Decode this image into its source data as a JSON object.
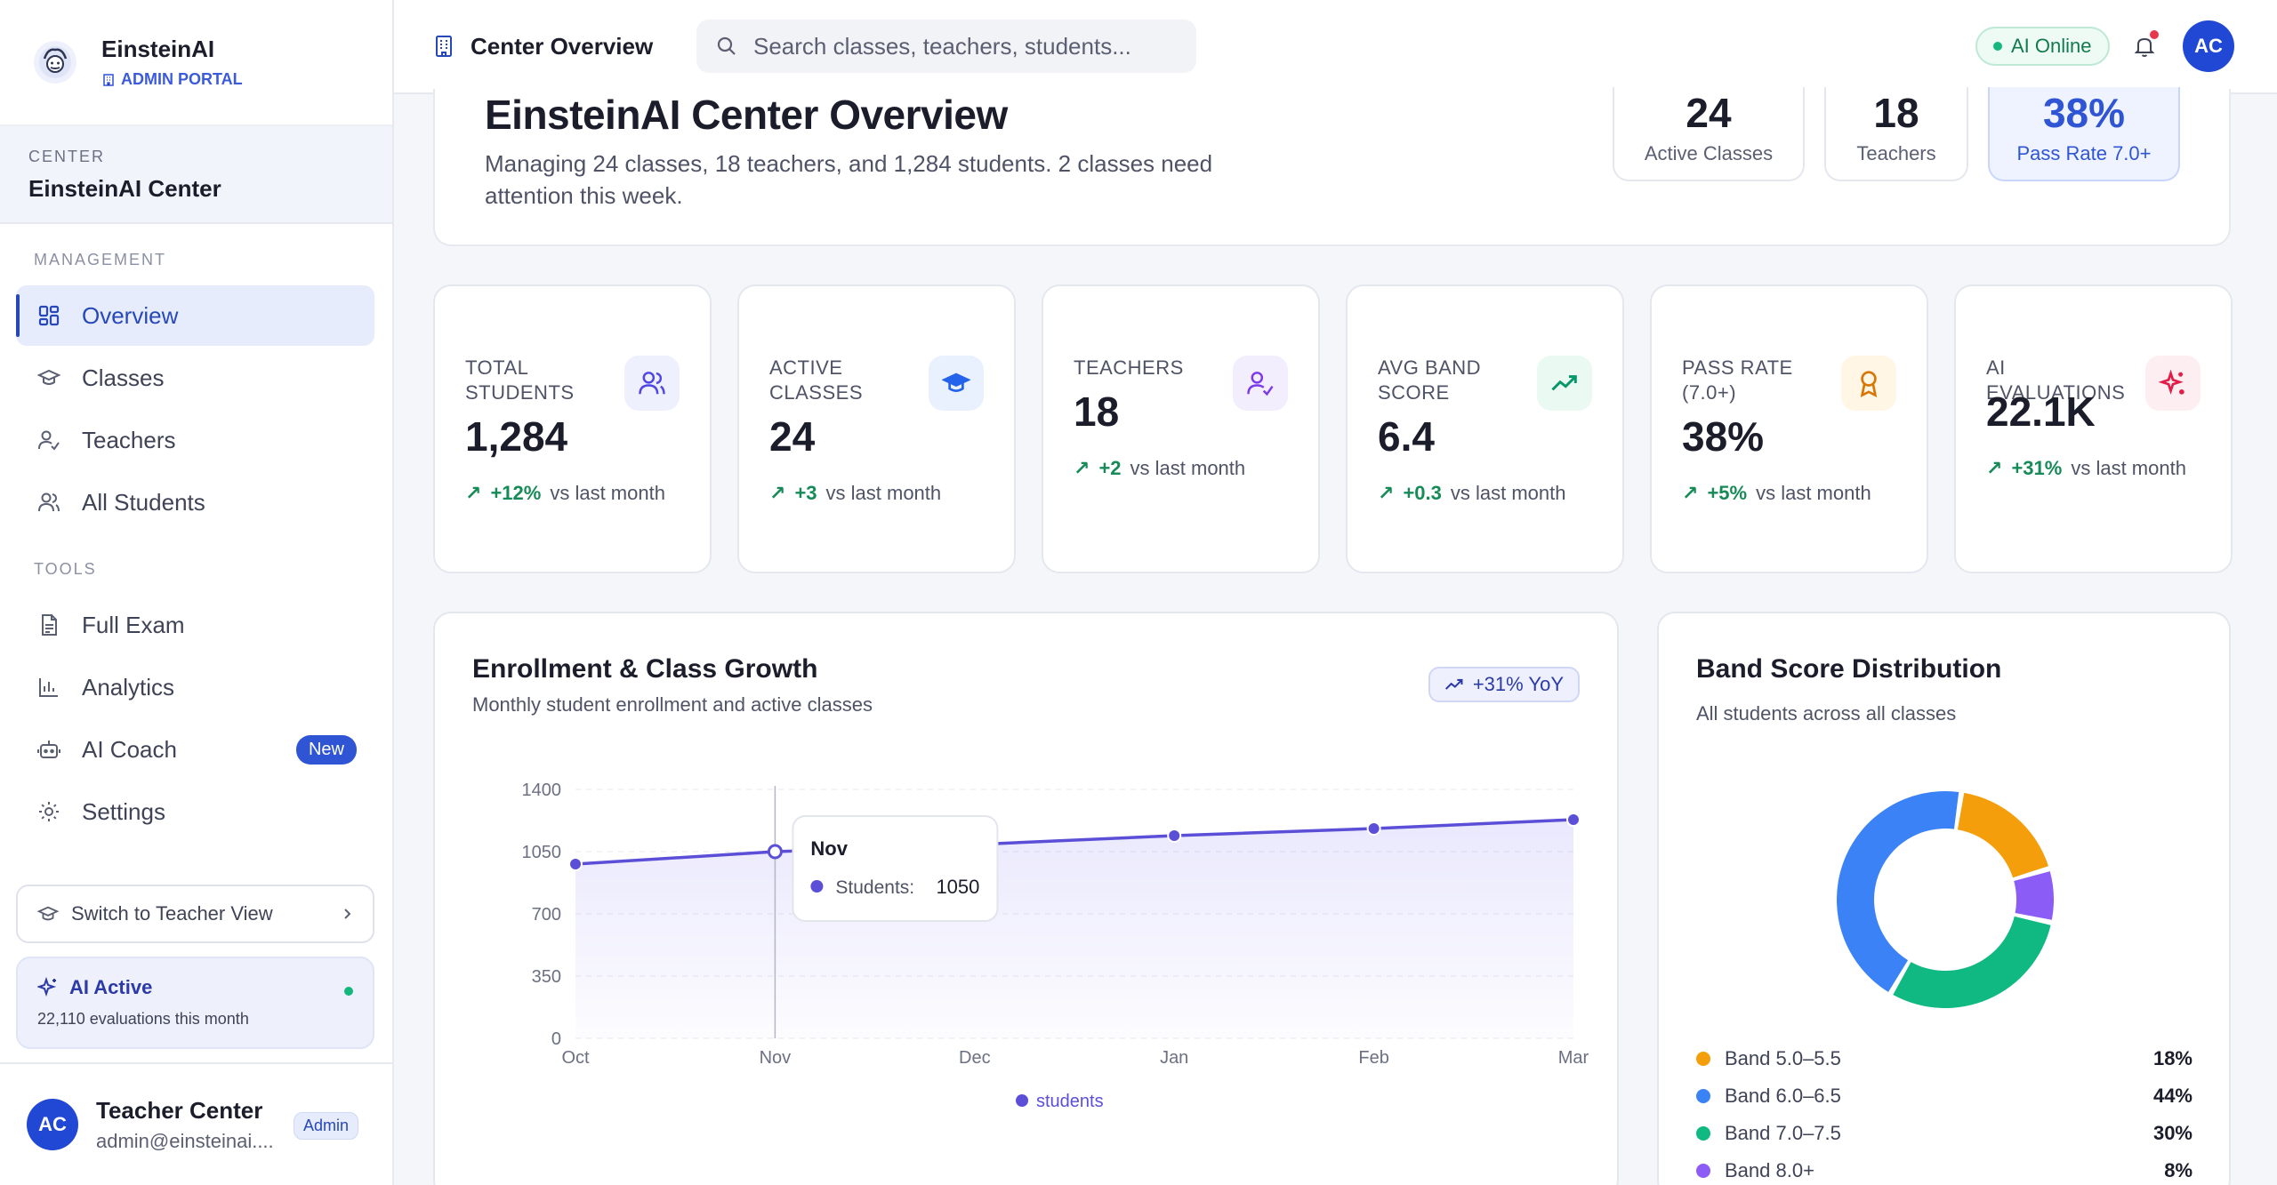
{
  "brand": {
    "name": "EinsteinAI",
    "portal": "ADMIN PORTAL"
  },
  "center": {
    "label": "CENTER",
    "name": "EinsteinAI Center"
  },
  "sidebar": {
    "management_label": "MANAGEMENT",
    "tools_label": "TOOLS",
    "management": [
      {
        "label": "Overview",
        "icon": "dashboard-icon"
      },
      {
        "label": "Classes",
        "icon": "graduation-cap-icon"
      },
      {
        "label": "Teachers",
        "icon": "user-check-icon"
      },
      {
        "label": "All Students",
        "icon": "users-icon"
      }
    ],
    "tools": [
      {
        "label": "Full Exam",
        "icon": "document-icon"
      },
      {
        "label": "Analytics",
        "icon": "bar-chart-icon"
      },
      {
        "label": "AI Coach",
        "icon": "robot-icon",
        "badge": "New"
      },
      {
        "label": "Settings",
        "icon": "gear-icon"
      }
    ],
    "switch_label": "Switch to Teacher View",
    "ai_active_title": "AI Active",
    "ai_active_sub": "22,110 evaluations this month"
  },
  "user": {
    "initials": "AC",
    "name": "Teacher Center",
    "email": "admin@einsteinai....",
    "role": "Admin"
  },
  "topbar": {
    "title": "Center Overview",
    "search_placeholder": "Search classes, teachers, students...",
    "ai_status": "AI Online",
    "avatar_initials": "AC"
  },
  "hero": {
    "title": "EinsteinAI Center Overview",
    "description": "Managing 24 classes, 18 teachers, and 1,284 students. 2 classes need attention this week.",
    "stats": [
      {
        "value": "24",
        "label": "Active Classes"
      },
      {
        "value": "18",
        "label": "Teachers"
      },
      {
        "value": "38%",
        "label": "Pass Rate 7.0+"
      }
    ]
  },
  "stats": [
    {
      "label": "TOTAL STUDENTS",
      "value": "1,284",
      "delta": "+12%",
      "suffix": "vs last month",
      "icon": "users-icon",
      "color": "#4f46e5",
      "bg": "#eef1fd"
    },
    {
      "label": "ACTIVE CLASSES",
      "value": "24",
      "delta": "+3",
      "suffix": "vs last month",
      "icon": "graduation-cap-icon",
      "color": "#2563eb",
      "bg": "#eaf1fe"
    },
    {
      "label": "TEACHERS",
      "value": "18",
      "delta": "+2",
      "suffix": "vs last month",
      "icon": "user-check-icon",
      "color": "#7c3aed",
      "bg": "#f3eefe"
    },
    {
      "label": "AVG BAND SCORE",
      "value": "6.4",
      "delta": "+0.3",
      "suffix": "vs last month",
      "icon": "trending-up-icon",
      "color": "#059669",
      "bg": "#eafaf3"
    },
    {
      "label": "PASS RATE (7.0+)",
      "value": "38%",
      "delta": "+5%",
      "suffix": "vs last month",
      "icon": "award-icon",
      "color": "#d97706",
      "bg": "#fff6e6"
    },
    {
      "label": "AI EVALUATIONS",
      "value": "22.1K",
      "delta": "+31%",
      "suffix": "vs last month",
      "icon": "sparkles-icon",
      "color": "#e11d48",
      "bg": "#fdeef1"
    }
  ],
  "enrollment": {
    "title": "Enrollment & Class Growth",
    "subtitle": "Monthly student enrollment and active classes",
    "yoy": "+31% YoY",
    "tooltip_month": "Nov",
    "tooltip_label": "Students:",
    "tooltip_value": "1050"
  },
  "distribution": {
    "title": "Band Score Distribution",
    "subtitle": "All students across all classes"
  },
  "chart_data": [
    {
      "type": "line",
      "title": "Enrollment & Class Growth",
      "x": [
        "Oct",
        "Nov",
        "Dec",
        "Jan",
        "Feb",
        "Mar"
      ],
      "series": [
        {
          "name": "students",
          "values": [
            980,
            1050,
            1090,
            1140,
            1180,
            1230
          ],
          "color": "#5b4fd8"
        }
      ],
      "yticks": [
        0,
        350,
        700,
        1050,
        1400
      ],
      "ylim": [
        0,
        1400
      ],
      "grid": true,
      "legend": "bottom"
    },
    {
      "type": "pie",
      "title": "Band Score Distribution",
      "categories": [
        "Band 5.0–5.5",
        "Band 6.0–6.5",
        "Band 7.0–7.5",
        "Band 8.0+"
      ],
      "values": [
        18,
        44,
        30,
        8
      ],
      "labels": [
        "18%",
        "44%",
        "30%",
        "8%"
      ],
      "colors": [
        "#f59e0b",
        "#3b82f6",
        "#10b981",
        "#8b5cf6"
      ],
      "legend": "bottom"
    }
  ]
}
